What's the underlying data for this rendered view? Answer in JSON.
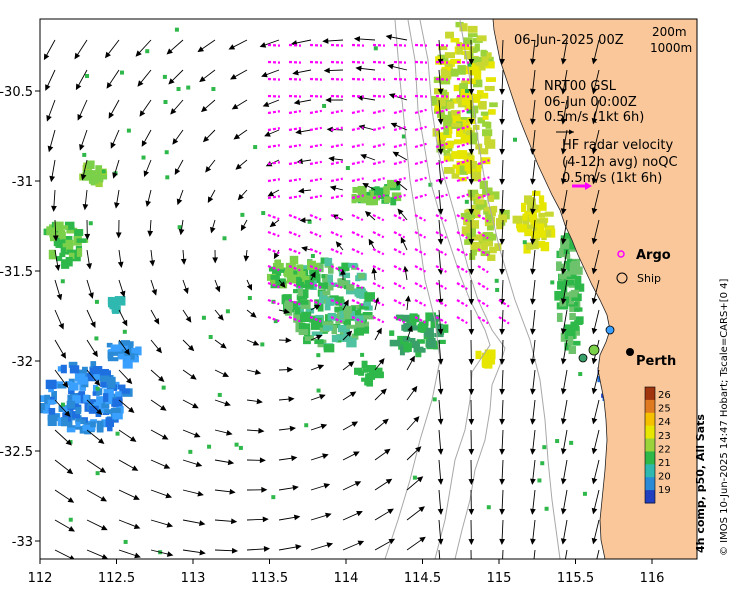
{
  "map": {
    "date_header": "06-Jun-2025 00Z",
    "depth_legend": [
      "200m",
      "1000m"
    ],
    "gsl_title": [
      "NRT00 GSL",
      "06-Jun 00:00Z",
      "0.5m/s (1kt 6h)"
    ],
    "hf_title": [
      "HF radar velocity",
      "(4-12h avg) noQC",
      "0.5m/s (1kt 6h)"
    ],
    "argo_label": "Argo",
    "ship_label": "Ship",
    "city_label": "Perth",
    "colorbar_title": "4h comp, p50, All Sats",
    "colorbar_ticks": [
      "26",
      "25",
      "24",
      "23",
      "22",
      "21",
      "20",
      "19"
    ],
    "credit": "© IMOS 10-Jun-2025 14:47 Hobart; Tscale=CARS+[0 4]",
    "x_ticks": [
      "112",
      "112.5",
      "113",
      "113.5",
      "114",
      "114.5",
      "115",
      "115.5",
      "116"
    ],
    "y_ticks": [
      "-30.5",
      "-31",
      "-31.5",
      "-32",
      "-32.5",
      "-33"
    ],
    "colors": {
      "land": "#f9c79a",
      "gsl_arrow": "#000000",
      "hf_arrow": "#ff00ff",
      "argo": "#ff00ff",
      "colorbar": [
        "#a0350f",
        "#e07a20",
        "#f5c000",
        "#e6e600",
        "#9ad43a",
        "#2fb84a",
        "#2fb8b0",
        "#2a8ad6",
        "#2040c0"
      ]
    }
  }
}
